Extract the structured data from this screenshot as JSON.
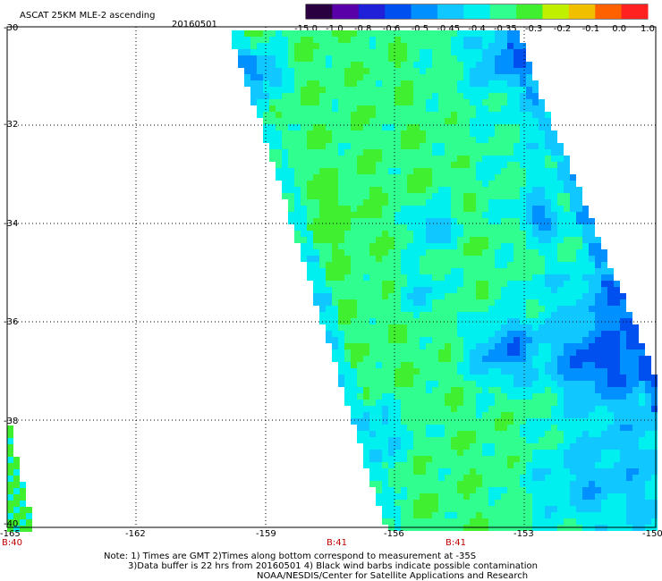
{
  "header": {
    "title": "ASCAT 25KM MLE-2 ascending",
    "date": "20160501"
  },
  "colorbar": {
    "labels": [
      "-15.0",
      "-1.0",
      "-0.8",
      "-0.6",
      "-0.5",
      "-0.45",
      "-0.4",
      "-0.35",
      "-0.3",
      "-0.2",
      "-0.1",
      "0.0",
      "1.0"
    ],
    "colors": [
      "#2a0040",
      "#5a00a8",
      "#2020d8",
      "#0050f0",
      "#0090ff",
      "#10c8ff",
      "#00f0f0",
      "#30ff90",
      "#40f030",
      "#c0f000",
      "#f0c000",
      "#ff6000",
      "#ff2020"
    ]
  },
  "map": {
    "lat_labels": [
      "-30",
      "-32",
      "-34",
      "-36",
      "-38",
      "-40"
    ],
    "lon_labels": [
      "-165",
      "-162",
      "-159",
      "-156",
      "-153",
      "-150"
    ],
    "time_labels": [
      {
        "text": "B:40",
        "lon": "-165"
      },
      {
        "text": "B:41",
        "lon": "-157"
      },
      {
        "text": "B:41",
        "lon": "-155"
      }
    ],
    "lat_range": [
      -30,
      -40
    ],
    "lon_range": [
      -165,
      -150
    ]
  },
  "footer": {
    "line1": "Note: 1) Times are GMT 2)Times along bottom correspond to measurement at -35S",
    "line2": "3)Data buffer is 22 hrs from 20160501 4) Black wind barbs indicate possible contamination",
    "line3": "NOAA/NESDIS/Center for Satellite Applications and Research"
  }
}
